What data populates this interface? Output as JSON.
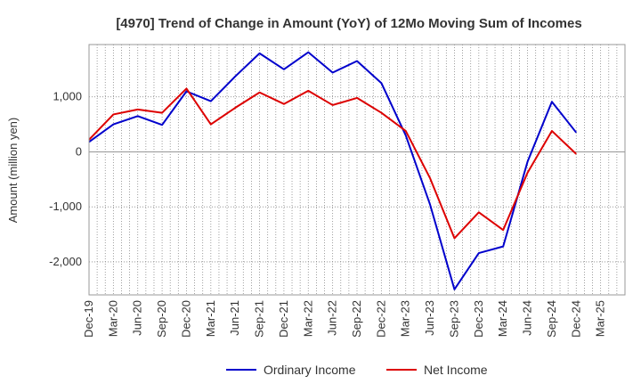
{
  "chart_data": {
    "type": "line",
    "title": "[4970]  Trend of Change in Amount (YoY) of 12Mo Moving Sum of Incomes",
    "xlabel": "",
    "ylabel": "Amount (million yen)",
    "ylim": [
      -2600,
      1950
    ],
    "yticks": [
      1000,
      0,
      -1000,
      -2000
    ],
    "ytick_labels": [
      "1,000",
      "0",
      "-1,000",
      "-2,000"
    ],
    "grid": true,
    "legend_position": "bottom",
    "categories": [
      "Dec-19",
      "Mar-20",
      "Jun-20",
      "Sep-20",
      "Dec-20",
      "Mar-21",
      "Jun-21",
      "Sep-21",
      "Dec-21",
      "Mar-22",
      "Jun-22",
      "Sep-22",
      "Dec-22",
      "Mar-23",
      "Jun-23",
      "Sep-23",
      "Dec-23",
      "Mar-24",
      "Jun-24",
      "Sep-24",
      "Dec-24",
      "Mar-25"
    ],
    "series": [
      {
        "name": "Ordinary Income",
        "color": "#0000cc",
        "values": [
          180,
          500,
          650,
          490,
          1100,
          920,
          1370,
          1790,
          1500,
          1810,
          1440,
          1650,
          1250,
          300,
          -960,
          -2500,
          -1840,
          -1720,
          -180,
          910,
          350,
          null
        ]
      },
      {
        "name": "Net Income",
        "color": "#dd0000",
        "values": [
          220,
          680,
          770,
          710,
          1150,
          500,
          800,
          1080,
          870,
          1110,
          850,
          980,
          710,
          380,
          -480,
          -1570,
          -1100,
          -1420,
          -380,
          380,
          -40,
          null
        ]
      }
    ]
  }
}
